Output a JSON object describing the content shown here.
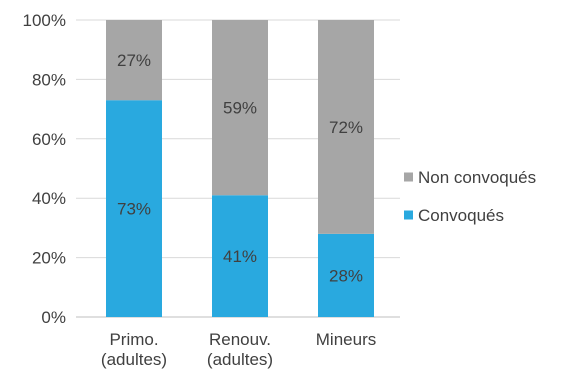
{
  "chart_data": {
    "type": "bar",
    "stacked": true,
    "percent": true,
    "categories": [
      [
        "Primo.",
        "(adultes)"
      ],
      [
        "Renouv.",
        "(adultes)"
      ],
      [
        "Mineurs"
      ]
    ],
    "series": [
      {
        "name": "Convoqués",
        "values": [
          73,
          41,
          28
        ],
        "labels": [
          "73%",
          "41%",
          "28%"
        ],
        "color": "#29a9df"
      },
      {
        "name": "Non convoqués",
        "values": [
          27,
          59,
          72
        ],
        "labels": [
          "27%",
          "59%",
          "72%"
        ],
        "color": "#a6a6a6"
      }
    ],
    "ylim": [
      0,
      100
    ],
    "yticks": [
      0,
      20,
      40,
      60,
      80,
      100
    ],
    "ytick_labels": [
      "0%",
      "20%",
      "40%",
      "60%",
      "80%",
      "100%"
    ],
    "grid": true,
    "legend": {
      "placement": "right",
      "order": [
        "Non convoqués",
        "Convoqués"
      ]
    }
  }
}
